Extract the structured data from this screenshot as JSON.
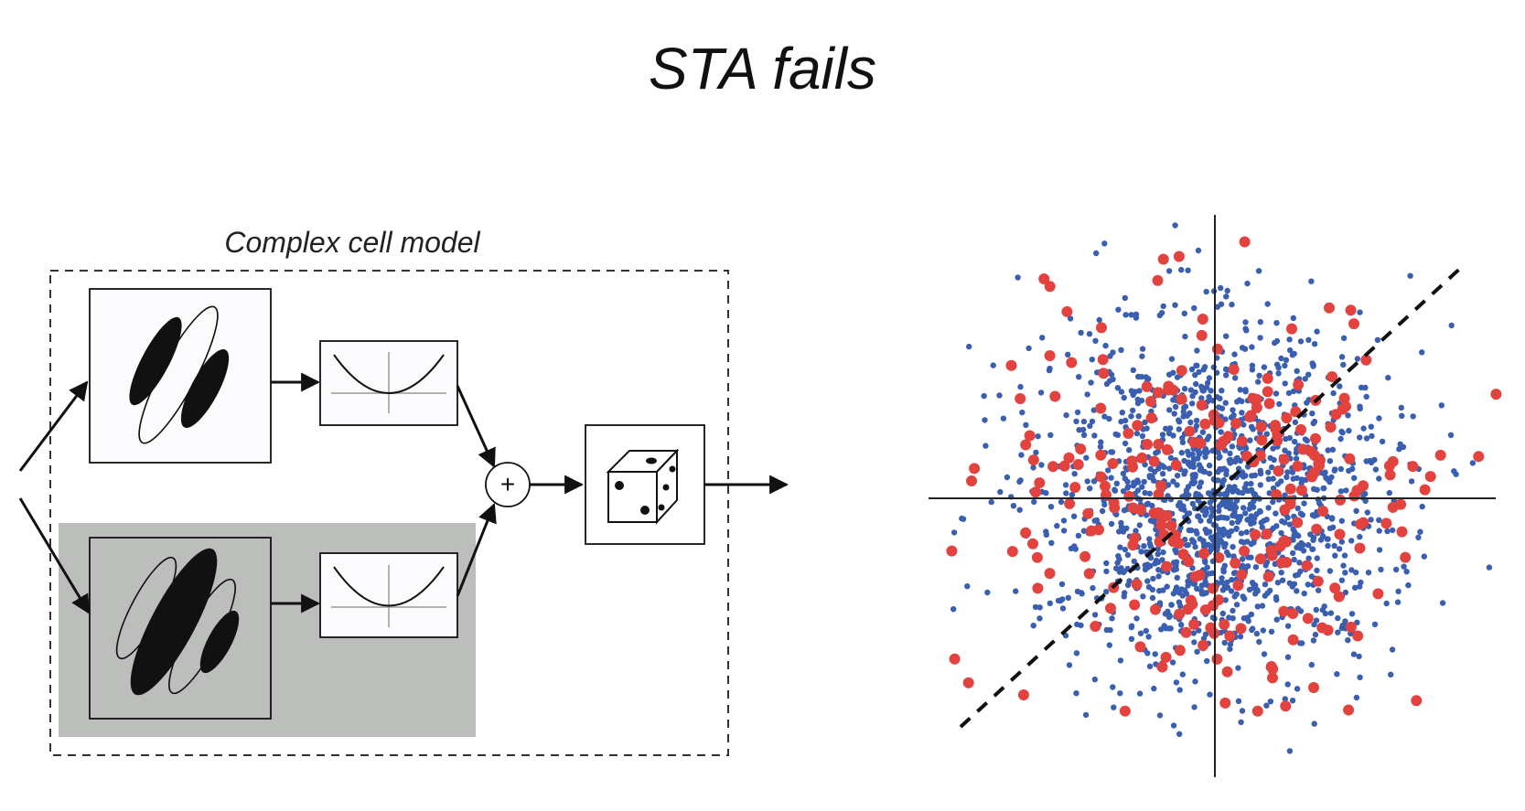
{
  "slide": {
    "title": "STA fails"
  },
  "diagram": {
    "label": "Complex cell model",
    "adder_symbol": "+",
    "components": {
      "linear_filter_1": "oriented-gabor-filter-icon",
      "linear_filter_2": "oriented-gabor-filter-quadrature-icon",
      "nonlinearity_1": "squaring-nonlinearity-icon",
      "nonlinearity_2": "squaring-nonlinearity-icon",
      "adder": "summation-node-icon",
      "spike_generator": "poisson-dice-icon"
    },
    "colors": {
      "line": "#111111",
      "dashed_border": "#333333",
      "shaded_region": "#bcbebb",
      "filter_box_fill": "#fbfbfd"
    }
  },
  "scatter": {
    "colors": {
      "raw_stimuli": "#3a5fb0",
      "spike_triggered": "#e2433f",
      "axes": "#222222",
      "diagonal": "#111111"
    },
    "diagonal_style": "dashed",
    "description_points": {
      "raw_count": 1500,
      "spike_count": 260
    }
  }
}
